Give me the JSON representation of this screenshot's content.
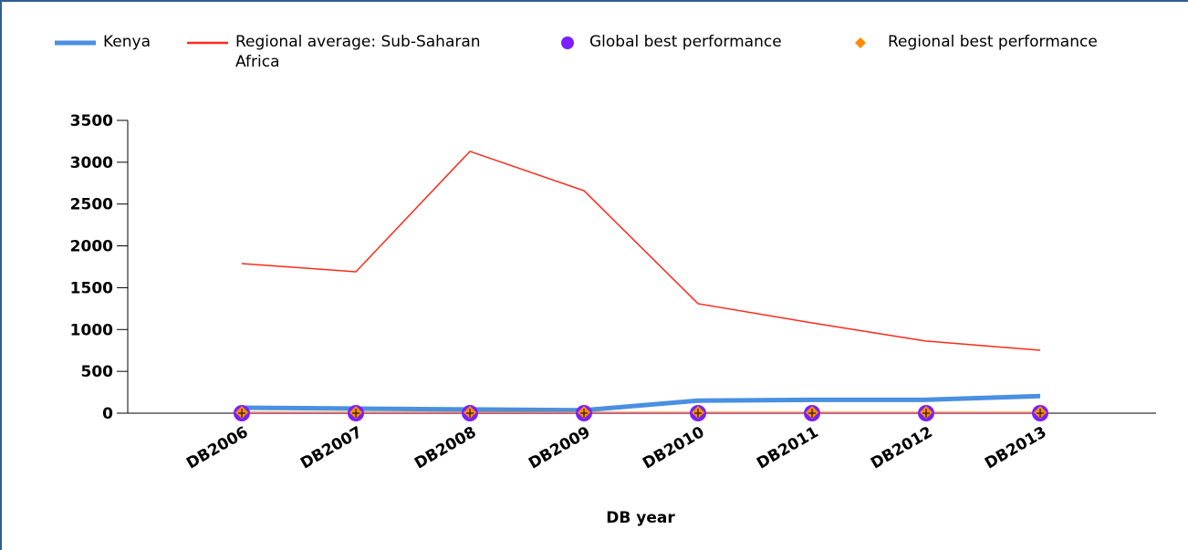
{
  "chart_data": {
    "type": "line",
    "x_label": "DB year",
    "categories": [
      "DB2006",
      "DB2007",
      "DB2008",
      "DB2009",
      "DB2010",
      "DB2011",
      "DB2012",
      "DB2013"
    ],
    "series": [
      {
        "name": "Kenya",
        "color": "#4a90e2",
        "marker": "none",
        "values": [
          65,
          55,
          45,
          35,
          150,
          160,
          160,
          205
        ]
      },
      {
        "name": "Regional average: Sub-Saharan Africa",
        "color": "#ff2a1a",
        "marker": "none",
        "values": [
          1788,
          1690,
          3130,
          2660,
          1309,
          1080,
          862,
          752
        ]
      },
      {
        "name": "Global best performance",
        "color": "#7b1fff",
        "marker": "circle",
        "values": [
          0,
          0,
          0,
          0,
          0,
          0,
          0,
          0
        ]
      },
      {
        "name": "Regional best performance",
        "color": "#ff8c00",
        "marker": "diamond",
        "values": [
          10,
          10,
          10,
          10,
          10,
          10,
          10,
          10
        ]
      }
    ],
    "ylim": [
      0,
      3500
    ],
    "yticks": [
      0,
      500,
      1000,
      1500,
      2000,
      2500,
      3000,
      3500
    ],
    "legend": "top",
    "grid": false
  }
}
